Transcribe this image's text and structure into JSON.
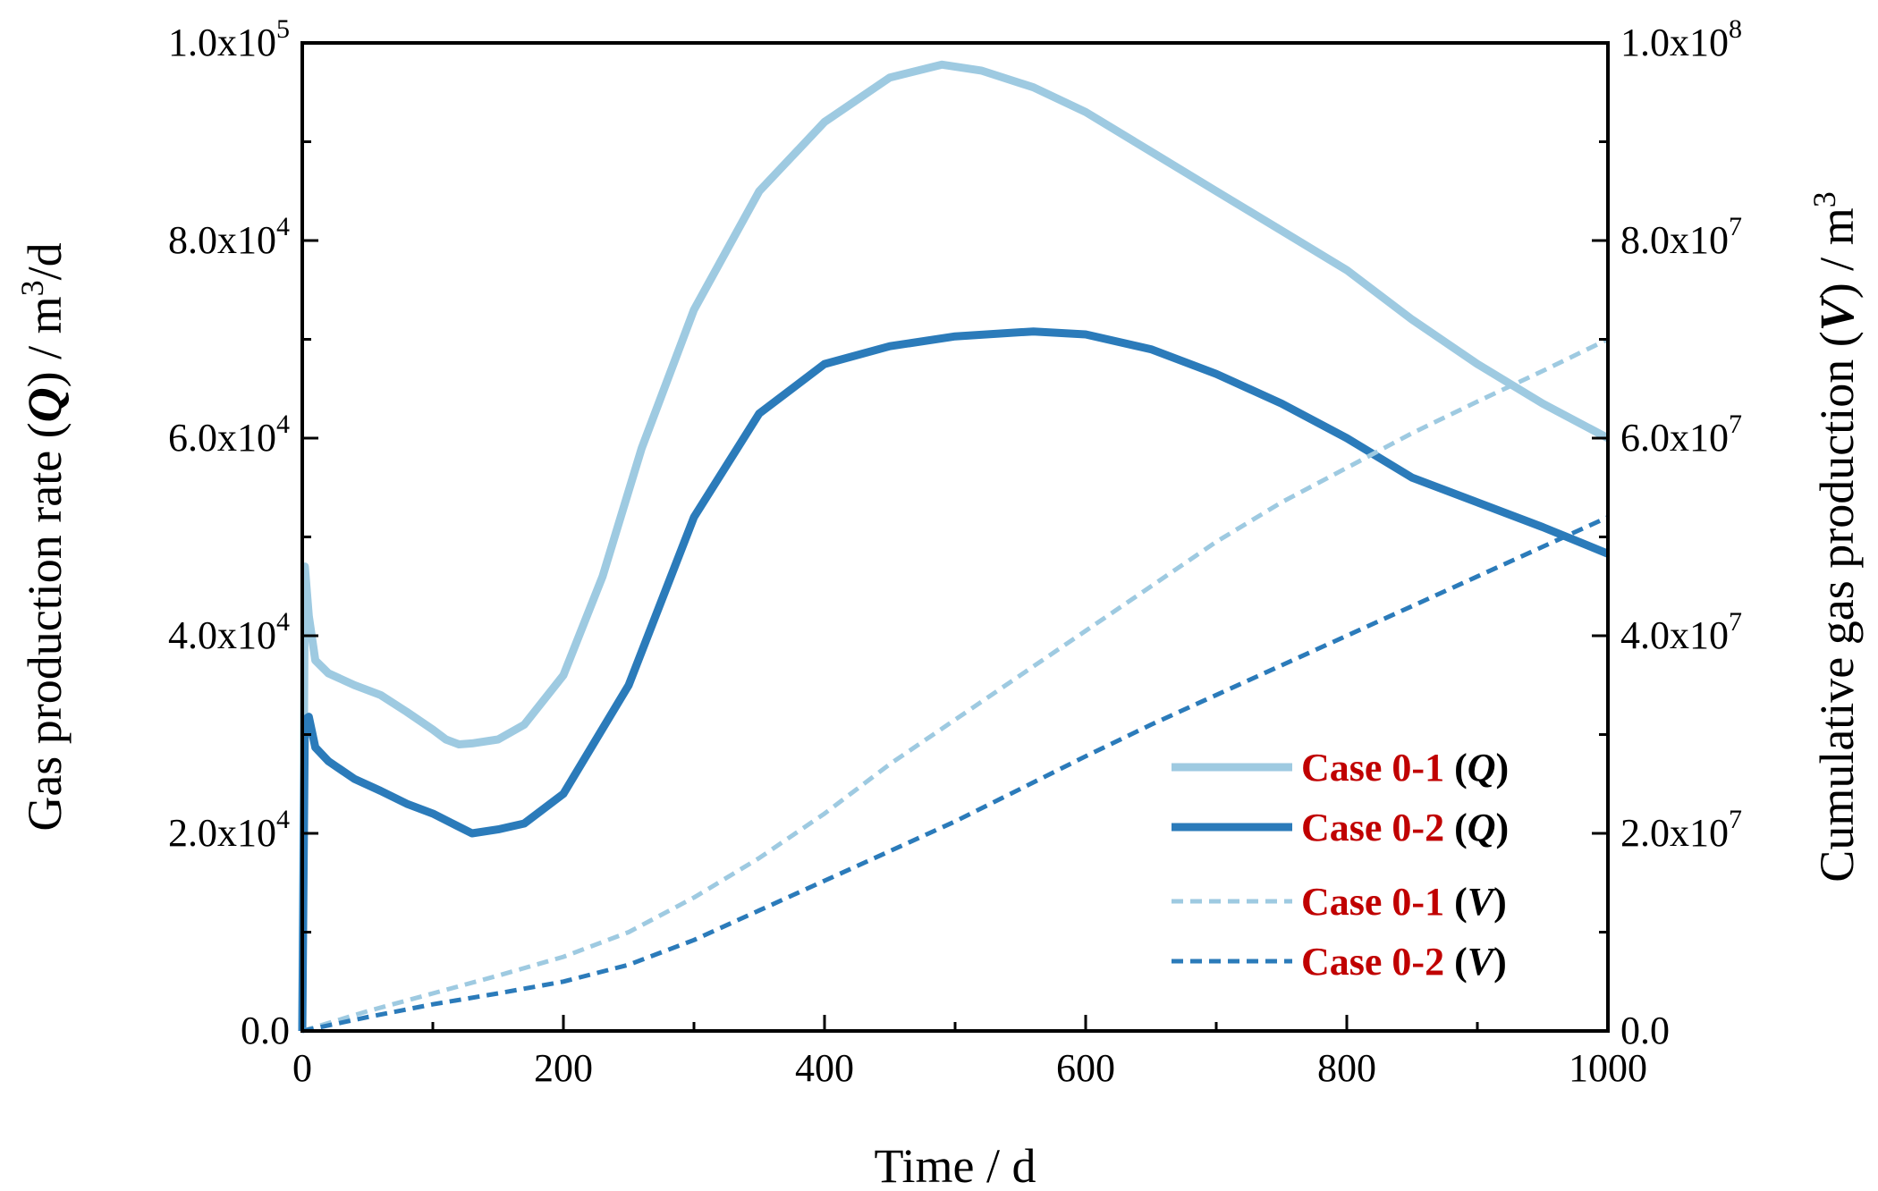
{
  "chart_data": {
    "type": "line",
    "xlabel": "Time / d",
    "ylabel": {
      "prefix": "Gas production rate (",
      "symbol": "Q",
      "suffix": ") / m",
      "unit_sup": "3",
      "unit_tail": "/d"
    },
    "y2label": {
      "prefix": "Cumulative gas production (",
      "symbol": "V",
      "suffix": ") / m",
      "unit_sup": "3"
    },
    "xlim": [
      0,
      1000
    ],
    "ylim": [
      0,
      100000
    ],
    "y2lim": [
      0,
      100000000
    ],
    "x_ticks": [
      "0",
      "200",
      "400",
      "600",
      "800",
      "1000"
    ],
    "y_ticks": [
      {
        "base": "0.0",
        "exp": ""
      },
      {
        "base": "2.0x10",
        "exp": "4"
      },
      {
        "base": "4.0x10",
        "exp": "4"
      },
      {
        "base": "6.0x10",
        "exp": "4"
      },
      {
        "base": "8.0x10",
        "exp": "4"
      },
      {
        "base": "1.0x10",
        "exp": "5"
      }
    ],
    "y2_ticks": [
      {
        "base": "0.0",
        "exp": ""
      },
      {
        "base": "2.0x10",
        "exp": "7"
      },
      {
        "base": "4.0x10",
        "exp": "7"
      },
      {
        "base": "6.0x10",
        "exp": "7"
      },
      {
        "base": "8.0x10",
        "exp": "7"
      },
      {
        "base": "1.0x10",
        "exp": "8"
      }
    ],
    "series": [
      {
        "name": "Case 0-1",
        "var": "Q",
        "axis": "left",
        "style": "solid",
        "color": "#9ecae1",
        "x": [
          0,
          2,
          5,
          10,
          20,
          40,
          60,
          80,
          100,
          110,
          120,
          130,
          150,
          170,
          200,
          230,
          260,
          300,
          350,
          400,
          450,
          490,
          520,
          560,
          600,
          650,
          700,
          750,
          800,
          850,
          900,
          950,
          1000
        ],
        "y": [
          0,
          47000,
          42000,
          37500,
          36200,
          35000,
          34000,
          32300,
          30500,
          29500,
          29000,
          29100,
          29500,
          31000,
          36000,
          46000,
          59000,
          73000,
          85000,
          92000,
          96500,
          97800,
          97200,
          95500,
          93000,
          89000,
          85000,
          81000,
          77000,
          72000,
          67500,
          63500,
          60000
        ]
      },
      {
        "name": "Case 0-2",
        "var": "Q",
        "axis": "left",
        "style": "solid",
        "color": "#2b7bba",
        "x": [
          0,
          2,
          5,
          10,
          20,
          40,
          60,
          80,
          100,
          115,
          130,
          150,
          170,
          200,
          250,
          300,
          350,
          400,
          450,
          500,
          560,
          600,
          650,
          700,
          750,
          800,
          850,
          900,
          950,
          1000
        ],
        "y": [
          0,
          31500,
          31800,
          28700,
          27300,
          25500,
          24300,
          23000,
          22000,
          21000,
          20000,
          20400,
          21000,
          24000,
          35000,
          52000,
          62500,
          67500,
          69300,
          70300,
          70800,
          70500,
          69000,
          66500,
          63500,
          60000,
          56000,
          53500,
          51000,
          48300
        ]
      },
      {
        "name": "Case 0-1",
        "var": "V",
        "axis": "right",
        "style": "dashed",
        "color": "#9ecae1",
        "x": [
          0,
          50,
          100,
          150,
          200,
          250,
          300,
          350,
          400,
          450,
          500,
          550,
          600,
          650,
          700,
          750,
          800,
          850,
          900,
          950,
          1000
        ],
        "y": [
          0,
          2000000,
          3800000,
          5600000,
          7500000,
          10000000,
          13500000,
          17500000,
          22000000,
          27000000,
          31500000,
          36000000,
          40500000,
          45000000,
          49500000,
          53500000,
          57000000,
          60500000,
          63700000,
          66800000,
          70000000
        ]
      },
      {
        "name": "Case 0-2",
        "var": "V",
        "axis": "right",
        "style": "dashed",
        "color": "#2b7bba",
        "x": [
          0,
          50,
          100,
          150,
          200,
          250,
          300,
          350,
          400,
          450,
          500,
          550,
          600,
          650,
          700,
          750,
          800,
          850,
          900,
          950,
          1000
        ],
        "y": [
          0,
          1400000,
          2700000,
          3800000,
          5000000,
          6700000,
          9200000,
          12200000,
          15200000,
          18200000,
          21200000,
          24500000,
          27800000,
          31000000,
          34000000,
          37000000,
          40000000,
          43000000,
          46000000,
          49000000,
          52000000
        ]
      }
    ],
    "legend": {
      "position": "bottom-right",
      "entries": [
        {
          "case": "Case 0-1",
          "var": "Q"
        },
        {
          "case": "Case 0-2",
          "var": "Q"
        },
        {
          "case": "Case 0-1",
          "var": "V"
        },
        {
          "case": "Case 0-2",
          "var": "V"
        }
      ]
    }
  }
}
